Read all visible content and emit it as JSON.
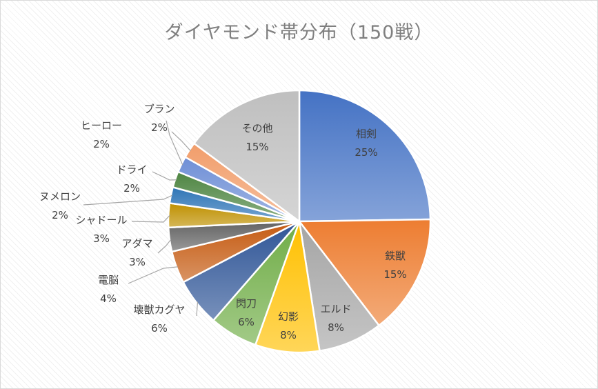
{
  "chart_data": {
    "type": "pie",
    "title": "ダイヤモンド帯分布（150戦）",
    "categories": [
      "相剣",
      "鉄獣",
      "エルド",
      "幻影",
      "閃刀",
      "壊獣カグヤ",
      "電脳",
      "アダマ",
      "シャドール",
      "ヌメロン",
      "ドライ",
      "ヒーロー",
      "プラン",
      "その他"
    ],
    "values": [
      25,
      15,
      8,
      8,
      6,
      6,
      4,
      3,
      3,
      2,
      2,
      2,
      2,
      15
    ],
    "value_labels": [
      "25%",
      "15%",
      "8%",
      "8%",
      "6%",
      "6%",
      "4%",
      "3%",
      "3%",
      "2%",
      "2%",
      "2%",
      "2%",
      "15%"
    ],
    "colors": [
      "#4472c4",
      "#ed7d31",
      "#a5a5a5",
      "#ffc000",
      "#70ad47",
      "#2f5597",
      "#c55a11",
      "#636363",
      "#bf9000",
      "#2e75b6",
      "#4e8542",
      "#6f8fd6",
      "#f19d6a",
      "#bfbfbf"
    ],
    "legend": "none"
  }
}
